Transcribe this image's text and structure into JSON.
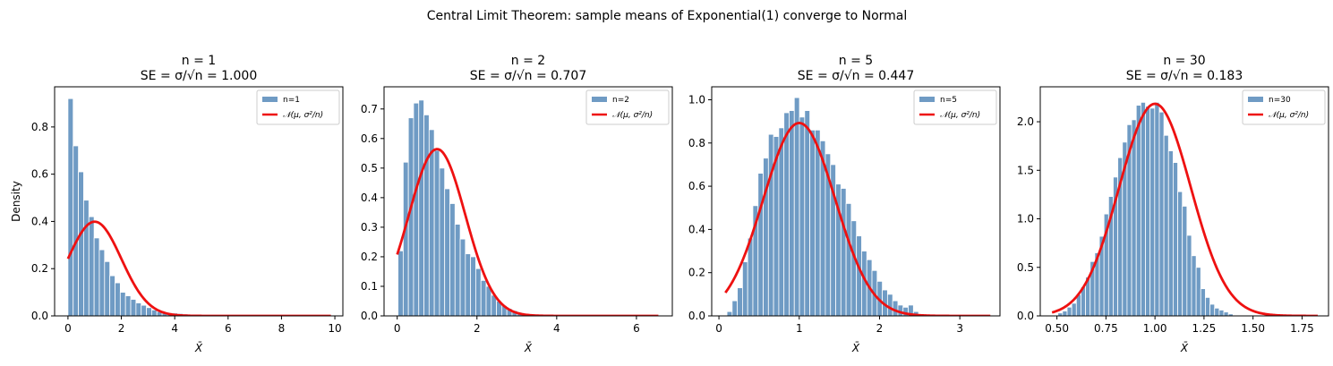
{
  "suptitle": "Central Limit Theorem: sample means of Exponential(1) converge to Normal",
  "colors": {
    "hist": "#6f9bc4",
    "hist_edge": "#ffffff",
    "curve": "#ee1111",
    "axis": "#000000"
  },
  "chart_data": [
    {
      "type": "bar",
      "title_line1": "n = 1",
      "title_line2": "SE = σ/√n = 1.000",
      "xlabel": "X̄",
      "ylabel": "Density",
      "xlim": [
        -0.5,
        10.3
      ],
      "ylim": [
        0,
        0.97
      ],
      "xticks": [
        0,
        2,
        4,
        6,
        8,
        10
      ],
      "yticks": [
        0.0,
        0.2,
        0.4,
        0.6,
        0.8
      ],
      "ytick_decimals": 1,
      "legend_hist": "n=1",
      "legend_curve": "𝒩(μ, σ²/n)",
      "bins": {
        "start": 0.0,
        "width": 0.196,
        "values": [
          0.92,
          0.72,
          0.61,
          0.49,
          0.42,
          0.33,
          0.28,
          0.23,
          0.17,
          0.14,
          0.1,
          0.085,
          0.07,
          0.055,
          0.045,
          0.035,
          0.025,
          0.018,
          0.013,
          0.012,
          0.012,
          0.01,
          0.008
        ]
      },
      "curve": {
        "mu": 1.0,
        "sigma": 1.0,
        "xmin": 0.0,
        "xmax": 9.85
      }
    },
    {
      "type": "bar",
      "title_line1": "n = 2",
      "title_line2": "SE = σ/√n = 0.707",
      "xlabel": "X̄",
      "ylabel": "",
      "xlim": [
        -0.33,
        6.9
      ],
      "ylim": [
        0,
        0.775
      ],
      "xticks": [
        0,
        2,
        4,
        6
      ],
      "yticks": [
        0.0,
        0.1,
        0.2,
        0.3,
        0.4,
        0.5,
        0.6,
        0.7
      ],
      "ytick_decimals": 1,
      "legend_hist": "n=2",
      "legend_curve": "𝒩(μ, σ²/n)",
      "bins": {
        "start": 0.02,
        "width": 0.13,
        "values": [
          0.22,
          0.52,
          0.67,
          0.72,
          0.73,
          0.68,
          0.63,
          0.56,
          0.5,
          0.43,
          0.38,
          0.31,
          0.26,
          0.21,
          0.2,
          0.16,
          0.12,
          0.1,
          0.07,
          0.05,
          0.035,
          0.025,
          0.018,
          0.012,
          0.008,
          0.006,
          0.004
        ]
      },
      "curve": {
        "mu": 1.0,
        "sigma": 0.707,
        "xmin": 0.0,
        "xmax": 6.55
      }
    },
    {
      "type": "bar",
      "title_line1": "n = 5",
      "title_line2": "SE = σ/√n = 0.447",
      "xlabel": "X̄",
      "ylabel": "",
      "xlim": [
        -0.09,
        3.5
      ],
      "ylim": [
        0,
        1.06
      ],
      "xticks": [
        0,
        1,
        2,
        3
      ],
      "yticks": [
        0.0,
        0.2,
        0.4,
        0.6,
        0.8,
        1.0
      ],
      "ytick_decimals": 1,
      "legend_hist": "n=5",
      "legend_curve": "𝒩(μ, σ²/n)",
      "bins": {
        "start": 0.1,
        "width": 0.0645,
        "values": [
          0.02,
          0.07,
          0.13,
          0.25,
          0.36,
          0.51,
          0.66,
          0.73,
          0.84,
          0.83,
          0.87,
          0.94,
          0.95,
          1.01,
          0.92,
          0.95,
          0.86,
          0.86,
          0.81,
          0.75,
          0.7,
          0.61,
          0.59,
          0.52,
          0.44,
          0.37,
          0.3,
          0.26,
          0.21,
          0.16,
          0.12,
          0.1,
          0.07,
          0.05,
          0.04,
          0.05,
          0.02,
          0.01
        ]
      },
      "curve": {
        "mu": 1.0,
        "sigma": 0.447,
        "xmin": 0.08,
        "xmax": 3.38
      }
    },
    {
      "type": "bar",
      "title_line1": "n = 30",
      "title_line2": "SE = σ/√n = 0.183",
      "xlabel": "X̄",
      "ylabel": "",
      "xlim": [
        0.415,
        1.885
      ],
      "ylim": [
        0,
        2.36
      ],
      "xticks": [
        0.5,
        0.75,
        1.0,
        1.25,
        1.5,
        1.75
      ],
      "yticks": [
        0.0,
        0.5,
        1.0,
        1.5,
        2.0
      ],
      "ytick_decimals": 1,
      "tick_decimals_x": 2,
      "legend_hist": "n=30",
      "legend_curve": "𝒩(μ, σ²/n)",
      "bins": {
        "start": 0.505,
        "width": 0.0235,
        "values": [
          0.03,
          0.05,
          0.09,
          0.13,
          0.22,
          0.3,
          0.4,
          0.56,
          0.65,
          0.82,
          1.05,
          1.23,
          1.43,
          1.63,
          1.79,
          1.97,
          2.02,
          2.17,
          2.2,
          2.16,
          2.14,
          2.2,
          2.1,
          1.86,
          1.7,
          1.58,
          1.28,
          1.13,
          0.83,
          0.62,
          0.5,
          0.28,
          0.19,
          0.12,
          0.08,
          0.06,
          0.04,
          0.02
        ]
      },
      "curve": {
        "mu": 1.0,
        "sigma": 0.1826,
        "xmin": 0.475,
        "xmax": 1.83
      }
    }
  ]
}
